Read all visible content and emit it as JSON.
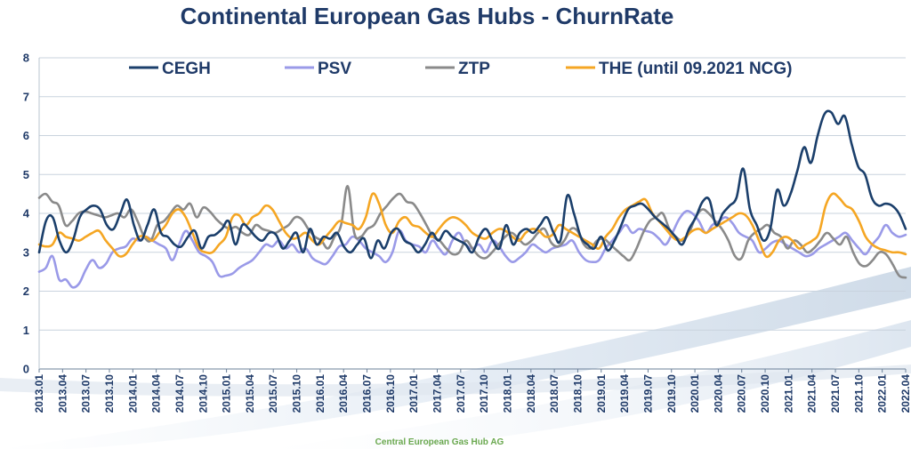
{
  "chart_data": {
    "type": "line",
    "title": "Continental European Gas Hubs - ChurnRate",
    "xlabel": "",
    "ylabel": "",
    "ylim": [
      0,
      8
    ],
    "yticks": [
      "0",
      "1",
      "2",
      "3",
      "4",
      "5",
      "6",
      "7",
      "8"
    ],
    "grid": true,
    "legend_position": "top",
    "x_tick_labels": [
      "2013.01",
      "2013.04",
      "2013.07",
      "2013.10",
      "2014.01",
      "2014.04",
      "2014.07",
      "2014.10",
      "2015.01",
      "2015.04",
      "2015.07",
      "2015.10",
      "2016.01",
      "2016.04",
      "2016.07",
      "2016.10",
      "2017.01",
      "2017.04",
      "2017.07",
      "2017.10",
      "2018.01",
      "2018.04",
      "2018.07",
      "2018.10",
      "2019.01",
      "2019.04",
      "2019.07",
      "2019.10",
      "2020.01",
      "2020.04",
      "2020.07",
      "2020.10",
      "2021.01",
      "2021.04",
      "2021.07",
      "2021.10",
      "2022.01",
      "2022.04"
    ],
    "series": [
      {
        "name": "CEGH",
        "color": "#1b3f6b",
        "values": [
          3.0,
          3.8,
          3.9,
          3.3,
          3.0,
          3.3,
          3.9,
          4.1,
          4.2,
          4.1,
          3.7,
          3.6,
          4.0,
          4.35,
          3.7,
          3.3,
          3.7,
          4.1,
          3.5,
          3.4,
          3.2,
          3.15,
          3.4,
          3.55,
          3.1,
          3.4,
          3.45,
          3.6,
          3.8,
          3.2,
          3.7,
          3.6,
          3.4,
          3.3,
          3.5,
          3.45,
          3.1,
          3.3,
          3.5,
          3.0,
          3.6,
          3.2,
          3.4,
          3.35,
          3.5,
          3.15,
          3.0,
          3.2,
          3.35,
          2.85,
          3.3,
          3.1,
          3.5,
          3.6,
          3.3,
          3.2,
          3.0,
          3.2,
          3.5,
          3.3,
          3.55,
          3.4,
          3.3,
          3.2,
          3.0,
          3.4,
          3.6,
          3.3,
          3.1,
          3.7,
          3.2,
          3.5,
          3.6,
          3.5,
          3.7,
          3.9,
          3.5,
          3.3,
          4.45,
          4.0,
          3.4,
          3.2,
          3.1,
          3.4,
          3.05,
          3.3,
          3.7,
          4.1,
          4.2,
          4.25,
          4.1,
          3.9,
          3.75,
          3.6,
          3.4,
          3.2,
          3.6,
          3.9,
          4.3,
          4.35,
          3.7,
          4.0,
          4.2,
          4.4,
          5.15,
          4.1,
          3.7,
          3.3,
          3.6,
          4.6,
          4.2,
          4.5,
          5.1,
          5.7,
          5.3,
          6.0,
          6.55,
          6.6,
          6.3,
          6.5,
          5.8,
          5.2,
          5.0,
          4.4,
          4.2,
          4.25,
          4.2,
          4.0,
          3.6
        ]
      },
      {
        "name": "PSV",
        "color": "#9a9ae8",
        "values": [
          2.5,
          2.6,
          2.9,
          2.3,
          2.3,
          2.1,
          2.2,
          2.55,
          2.8,
          2.6,
          2.7,
          3.0,
          3.1,
          3.15,
          3.35,
          3.3,
          3.4,
          3.3,
          3.2,
          3.1,
          2.8,
          3.2,
          3.55,
          3.3,
          3.0,
          2.9,
          2.75,
          2.4,
          2.4,
          2.45,
          2.6,
          2.7,
          2.8,
          3.0,
          3.2,
          3.15,
          3.3,
          3.1,
          3.2,
          3.0,
          3.1,
          2.85,
          2.75,
          2.7,
          2.9,
          3.15,
          3.2,
          3.4,
          3.3,
          3.1,
          3.0,
          2.9,
          2.75,
          3.0,
          3.55,
          3.3,
          3.2,
          3.15,
          3.0,
          3.3,
          3.1,
          2.95,
          3.3,
          3.5,
          3.2,
          3.1,
          3.2,
          3.0,
          3.3,
          3.15,
          2.9,
          2.75,
          2.85,
          3.0,
          3.2,
          3.1,
          3.0,
          3.1,
          3.15,
          3.2,
          3.3,
          3.0,
          2.8,
          2.75,
          2.8,
          3.1,
          3.3,
          3.5,
          3.7,
          3.5,
          3.6,
          3.55,
          3.5,
          3.35,
          3.2,
          3.5,
          3.85,
          4.05,
          4.0,
          3.8,
          3.5,
          3.7,
          3.8,
          3.9,
          3.75,
          3.5,
          3.4,
          3.3,
          3.0,
          3.1,
          3.25,
          3.3,
          3.2,
          3.1,
          3.0,
          2.9,
          2.95,
          3.1,
          3.2,
          3.3,
          3.4,
          3.5,
          3.3,
          3.1,
          2.95,
          3.2,
          3.4,
          3.7,
          3.5,
          3.4,
          3.45
        ]
      },
      {
        "name": "ZTP",
        "color": "#8a8a8a",
        "values": [
          4.4,
          4.5,
          4.3,
          4.2,
          3.7,
          3.8,
          4.0,
          4.05,
          4.0,
          3.95,
          3.9,
          3.95,
          4.0,
          3.9,
          4.1,
          3.8,
          3.4,
          3.3,
          3.7,
          3.8,
          4.0,
          4.2,
          4.1,
          4.25,
          3.9,
          4.15,
          4.05,
          3.85,
          3.7,
          3.6,
          3.65,
          3.5,
          3.45,
          3.7,
          3.6,
          3.55,
          3.5,
          3.6,
          3.7,
          3.9,
          3.85,
          3.6,
          3.4,
          3.3,
          3.1,
          3.4,
          3.7,
          4.7,
          3.5,
          3.4,
          3.6,
          3.7,
          4.0,
          4.2,
          4.4,
          4.5,
          4.3,
          4.25,
          4.0,
          3.7,
          3.4,
          3.3,
          3.1,
          2.95,
          3.0,
          3.3,
          3.1,
          2.9,
          2.85,
          3.0,
          3.2,
          3.4,
          3.5,
          3.35,
          3.2,
          3.3,
          3.5,
          3.6,
          3.25,
          3.15,
          3.3,
          3.6,
          3.55,
          3.2,
          3.1,
          3.3,
          3.35,
          3.2,
          3.05,
          2.9,
          2.8,
          3.1,
          3.5,
          3.8,
          3.9,
          4.0,
          3.6,
          3.4,
          3.3,
          3.5,
          3.9,
          4.1,
          4.0,
          3.8,
          3.6,
          3.3,
          2.9,
          2.85,
          3.3,
          3.5,
          3.6,
          3.7,
          3.5,
          3.4,
          3.1,
          3.3,
          3.2,
          3.0,
          3.1,
          3.3,
          3.5,
          3.35,
          3.2,
          3.4,
          3.0,
          2.7,
          2.65,
          2.8,
          3.0,
          2.95,
          2.7,
          2.4,
          2.35
        ]
      },
      {
        "name": "THE (until 09.2021 NCG)",
        "color": "#f5a623",
        "values": [
          3.2,
          3.15,
          3.2,
          3.5,
          3.4,
          3.35,
          3.3,
          3.4,
          3.5,
          3.55,
          3.3,
          3.1,
          2.9,
          2.95,
          3.2,
          3.4,
          3.4,
          3.3,
          3.5,
          3.7,
          4.0,
          4.1,
          3.9,
          3.5,
          3.1,
          3.0,
          3.0,
          3.2,
          3.4,
          3.9,
          3.95,
          3.7,
          3.9,
          4.0,
          4.2,
          4.1,
          3.8,
          3.5,
          3.35,
          3.4,
          3.5,
          3.3,
          3.2,
          3.4,
          3.6,
          3.8,
          3.75,
          3.7,
          3.6,
          3.9,
          4.5,
          4.25,
          3.7,
          3.5,
          3.8,
          3.9,
          3.7,
          3.65,
          3.5,
          3.4,
          3.6,
          3.8,
          3.9,
          3.85,
          3.7,
          3.5,
          3.4,
          3.35,
          3.5,
          3.6,
          3.55,
          3.4,
          3.3,
          3.5,
          3.6,
          3.55,
          3.4,
          3.45,
          3.7,
          3.6,
          3.5,
          3.4,
          3.3,
          3.2,
          3.1,
          3.4,
          3.6,
          3.9,
          4.1,
          4.2,
          4.3,
          4.35,
          4.0,
          3.8,
          3.6,
          3.4,
          3.3,
          3.4,
          3.55,
          3.6,
          3.5,
          3.6,
          3.7,
          3.8,
          3.9,
          4.0,
          3.95,
          3.7,
          3.3,
          2.9,
          3.0,
          3.3,
          3.4,
          3.3,
          3.1,
          3.2,
          3.3,
          3.5,
          4.2,
          4.5,
          4.4,
          4.2,
          4.1,
          3.8,
          3.4,
          3.2,
          3.1,
          3.05,
          3.0,
          3.0,
          2.95
        ]
      }
    ]
  },
  "footer": {
    "text": "Central European Gas Hub AG"
  }
}
